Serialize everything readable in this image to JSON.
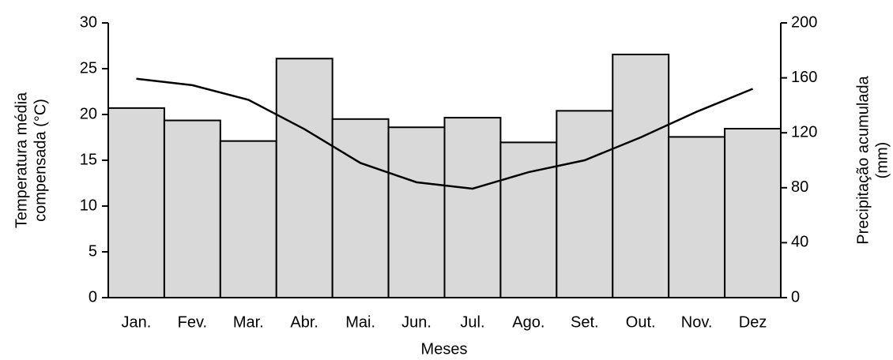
{
  "chart_data": {
    "type": "combo",
    "categories": [
      "Jan.",
      "Fev.",
      "Mar.",
      "Abr.",
      "Mai.",
      "Jun.",
      "Jul.",
      "Ago.",
      "Set.",
      "Out.",
      "Nov.",
      "Dez"
    ],
    "xlabel": "Meses",
    "ylabel": [
      "Temperatura média",
      "compensada (°C)"
    ],
    "y2label": [
      "Precipitação acumulada",
      "(mm)"
    ],
    "ylim": [
      0,
      30
    ],
    "yticks": [
      0,
      5,
      10,
      15,
      20,
      25,
      30
    ],
    "y2lim": [
      0,
      200
    ],
    "y2ticks": [
      0,
      40,
      80,
      120,
      160,
      200
    ],
    "series": [
      {
        "type": "bar",
        "axis": "y2",
        "color": "#d9d9d9",
        "values": [
          138,
          129,
          114,
          174,
          130,
          124,
          131,
          113,
          136,
          177,
          117,
          123
        ]
      },
      {
        "type": "line",
        "color": "#000000",
        "values": [
          23.9,
          23.2,
          21.6,
          18.4,
          14.7,
          12.6,
          11.9,
          13.7,
          15.0,
          17.5,
          20.3,
          22.8
        ]
      }
    ]
  }
}
